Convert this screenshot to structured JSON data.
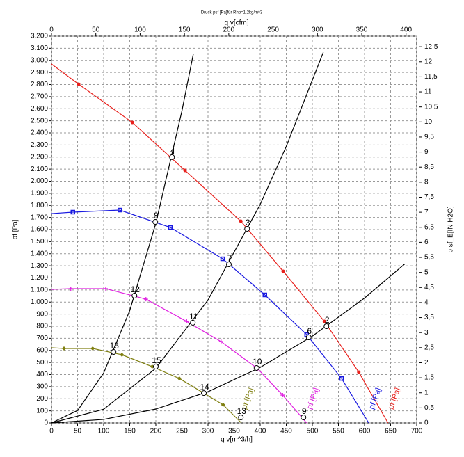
{
  "chart_data": {
    "type": "line",
    "title": "Druck psf [Pa]für Rho=1,2kg/m^3",
    "xlabel": "q v[m^3/h]",
    "x2label": "q v[cfm]",
    "ylabel": "pf [Pa]",
    "y2label": "p sf_E[IN H2O]",
    "grid": true,
    "xlim": [
      0,
      700
    ],
    "xticks": [
      0,
      50,
      100,
      150,
      200,
      250,
      300,
      350,
      400,
      450,
      500,
      550,
      600,
      650,
      700
    ],
    "x2lim": [
      0,
      412
    ],
    "x2ticks": [
      0,
      50,
      100,
      150,
      200,
      250,
      300,
      350,
      400
    ],
    "ylim": [
      0,
      3200
    ],
    "yticks": [
      0,
      {
        "value": 100,
        "label": "100"
      },
      {
        "value": 200,
        "label": "200"
      },
      {
        "value": 300,
        "label": "300"
      },
      {
        "value": 400,
        "label": "400"
      },
      {
        "value": 500,
        "label": "500"
      },
      {
        "value": 600,
        "label": "600"
      },
      {
        "value": 700,
        "label": "700"
      },
      {
        "value": 800,
        "label": "800"
      },
      {
        "value": 900,
        "label": "900"
      },
      {
        "value": 1000,
        "label": "1.000"
      },
      {
        "value": 1100,
        "label": "1.100"
      },
      {
        "value": 1200,
        "label": "1.200"
      },
      {
        "value": 1300,
        "label": "1.300"
      },
      {
        "value": 1400,
        "label": "1.400"
      },
      {
        "value": 1500,
        "label": "1.500"
      },
      {
        "value": 1600,
        "label": "1.600"
      },
      {
        "value": 1700,
        "label": "1.700"
      },
      {
        "value": 1800,
        "label": "1.800"
      },
      {
        "value": 1900,
        "label": "1.900"
      },
      {
        "value": 2000,
        "label": "2.000"
      },
      {
        "value": 2100,
        "label": "2.100"
      },
      {
        "value": 2200,
        "label": "2.200"
      },
      {
        "value": 2300,
        "label": "2.300"
      },
      {
        "value": 2400,
        "label": "2.400"
      },
      {
        "value": 2500,
        "label": "2.500"
      },
      {
        "value": 2600,
        "label": "2.600"
      },
      {
        "value": 2700,
        "label": "2.700"
      },
      {
        "value": 2800,
        "label": "2.800"
      },
      {
        "value": 2900,
        "label": "2.900"
      },
      {
        "value": 3000,
        "label": "3.000"
      },
      {
        "value": 3100,
        "label": "3.100"
      },
      {
        "value": 3200,
        "label": "3.200"
      }
    ],
    "y2lim": [
      0,
      12.85
    ],
    "y2ticks": [
      0,
      {
        "value": 0.5,
        "label": "0,5"
      },
      1,
      {
        "value": 1.5,
        "label": "1,5"
      },
      2,
      {
        "value": 2.5,
        "label": "2,5"
      },
      3,
      {
        "value": 3.5,
        "label": "3,5"
      },
      4,
      {
        "value": 4.5,
        "label": "4,5"
      },
      5,
      {
        "value": 5.5,
        "label": "5,5"
      },
      6,
      {
        "value": 6.5,
        "label": "6,5"
      },
      7,
      {
        "value": 7.5,
        "label": "7,5"
      },
      8,
      {
        "value": 8.5,
        "label": "8,5"
      },
      9,
      {
        "value": 9.5,
        "label": "9,5"
      },
      10,
      {
        "value": 10.5,
        "label": "10,5"
      },
      11,
      {
        "value": 11.5,
        "label": "11,5"
      },
      12,
      {
        "value": 12.5,
        "label": "12,5"
      }
    ],
    "series": [
      {
        "name": "pf [Pa]",
        "color": "#e8201c",
        "marker": "circle",
        "x": [
          0,
          52,
          155,
          256,
          363,
          444,
          523,
          589,
          645
        ],
        "values": [
          2970,
          2803,
          2486,
          2089,
          1669,
          1255,
          840,
          420,
          0
        ]
      },
      {
        "name": "pf [Pa]",
        "color": "#1a1ae0",
        "marker": "square",
        "x": [
          0,
          41,
          131,
          228,
          328,
          409,
          489,
          556,
          608
        ],
        "values": [
          1732,
          1744,
          1761,
          1617,
          1358,
          1059,
          731,
          368,
          0
        ]
      },
      {
        "name": "pf [Pa]",
        "color": "#e020e0",
        "marker": "plus",
        "x": [
          0,
          37,
          104,
          181,
          259,
          325,
          395,
          443,
          489
        ],
        "values": [
          1105,
          1111,
          1111,
          1024,
          840,
          673,
          449,
          230,
          0
        ]
      },
      {
        "name": "pf [Pa]",
        "color": "#7f7f10",
        "marker": "diamond",
        "x": [
          0,
          24,
          79,
          135,
          193,
          245,
          329,
          364
        ],
        "values": [
          622,
          616,
          616,
          564,
          466,
          368,
          150,
          0
        ]
      },
      {
        "color": "#000000",
        "x": [
          0,
          50,
          100,
          150,
          200,
          250,
          272
        ],
        "values": [
          0,
          103,
          413,
          929,
          1652,
          2581,
          3056
        ]
      },
      {
        "color": "#000000",
        "x": [
          0,
          100,
          200,
          300,
          400,
          450,
          521
        ],
        "values": [
          0,
          113,
          452,
          1017,
          1808,
          2288,
          3067
        ]
      },
      {
        "color": "#000000",
        "x": [
          0,
          100,
          200,
          300,
          400,
          500,
          600,
          677
        ],
        "values": [
          0,
          29,
          115,
          258,
          459,
          718,
          1033,
          1315
        ]
      }
    ],
    "operating_points": {
      "labels": [
        "2",
        "3",
        "4",
        "6",
        "7",
        "8",
        "9",
        "10",
        "11",
        "12",
        "13",
        "14",
        "15",
        "16"
      ],
      "x": [
        527,
        375,
        231,
        493,
        340,
        199,
        483,
        393,
        271,
        159,
        363,
        292,
        200,
        119
      ],
      "values": [
        800,
        1606,
        2199,
        708,
        1312,
        1663,
        46,
        455,
        829,
        1053,
        46,
        247,
        466,
        587
      ]
    }
  }
}
